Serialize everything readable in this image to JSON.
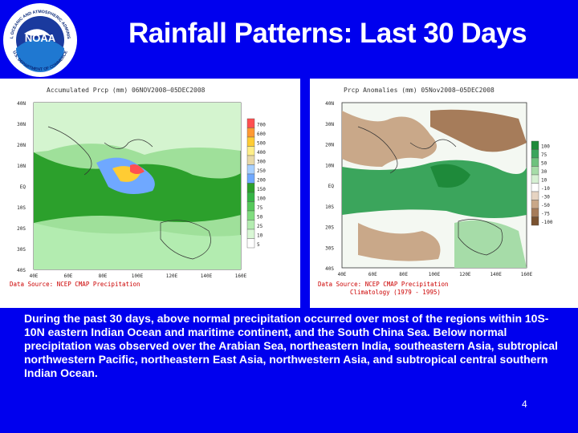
{
  "slide": {
    "title": "Rainfall Patterns: Last 30 Days",
    "page_number": "4",
    "logo_text_top": "NATIONAL OCEANIC AND ATMOSPHERIC ADMINISTRATION",
    "logo_text_bottom": "U.S. DEPARTMENT OF COMMERCE",
    "logo_center": "NOAA",
    "description": "During the past 30 days, above normal precipitation occurred over most of the regions within 10S-10N eastern Indian Ocean and maritime continent, and the South China Sea. Below normal precipitation was observed over the Arabian Sea, northeastern India, southeastern Asia, subtropical northwestern Pacific, northeastern East Asia, northwestern Asia, and subtropical central southern Indian Ocean."
  },
  "left_map": {
    "title": "Accumulated Prcp (mm) 06NOV2008—05DEC2008",
    "source": "Data Source: NCEP CMAP Precipitation",
    "lat_labels": [
      "40N",
      "30N",
      "20N",
      "10N",
      "EQ",
      "10S",
      "20S",
      "30S",
      "40S"
    ],
    "lon_labels": [
      "40E",
      "60E",
      "80E",
      "100E",
      "120E",
      "140E",
      "160E"
    ],
    "legend": [
      "700",
      "600",
      "500",
      "400",
      "300",
      "250",
      "200",
      "150",
      "100",
      "75",
      "50",
      "25",
      "10",
      "5"
    ],
    "legend_colors": [
      "#ff5050",
      "#ff9933",
      "#ffcc33",
      "#ffee88",
      "#e8d9a8",
      "#a8d0ff",
      "#6fa8ff",
      "#2ca02c",
      "#35b545",
      "#55c95a",
      "#80dd7f",
      "#b3ecb0",
      "#d9f7d5",
      "#ffffff"
    ]
  },
  "right_map": {
    "title": "Prcp Anomalies (mm) 05Nov2008—05DEC2008",
    "source": "Data Source: NCEP CMAP Precipitation",
    "source_line2": "Climatology (1979 - 1995)",
    "lat_labels": [
      "40N",
      "30N",
      "20N",
      "10N",
      "EQ",
      "10S",
      "20S",
      "30S",
      "40S"
    ],
    "lon_labels": [
      "40E",
      "60E",
      "80E",
      "100E",
      "120E",
      "140E",
      "160E"
    ],
    "legend": [
      "100",
      "75",
      "50",
      "30",
      "10",
      "-10",
      "-30",
      "-50",
      "-75",
      "-100"
    ],
    "legend_colors": [
      "#1e8a3a",
      "#3ba55c",
      "#6ec27e",
      "#a6dca8",
      "#d6f0d3",
      "#ffffff",
      "#e6d4c2",
      "#c9a889",
      "#a67c5a",
      "#7a5230"
    ]
  }
}
